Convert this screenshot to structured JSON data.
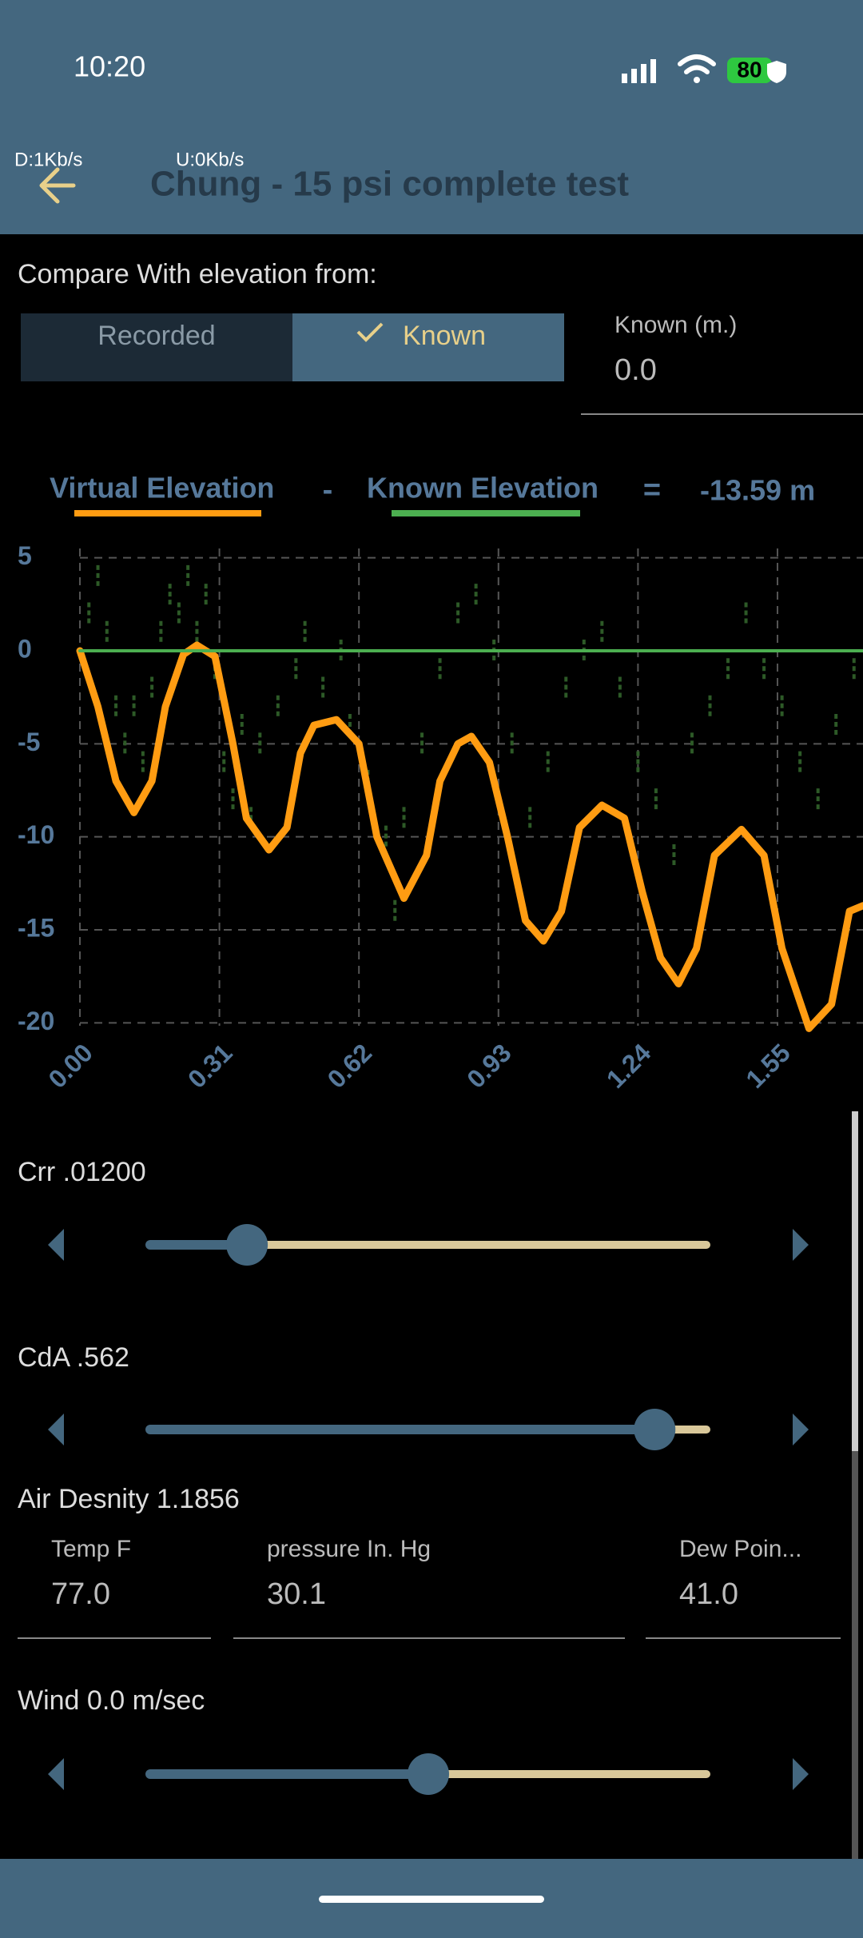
{
  "status_bar": {
    "time": "10:20",
    "battery": "80",
    "download": "D:1Kb/s",
    "upload": "U:0Kb/s"
  },
  "header": {
    "title": "Chung - 15 psi complete test"
  },
  "compare": {
    "label": "Compare With elevation from:",
    "options": [
      "Recorded",
      "Known"
    ],
    "selected": 1,
    "known_label": "Known (m.)",
    "known_value": "0.0"
  },
  "chart_data": {
    "type": "line",
    "xlim": [
      0,
      1.74
    ],
    "ylim": [
      -20.5,
      5.5
    ],
    "xticks": [
      {
        "value": 0,
        "label": "0.00"
      },
      0.31,
      0.62,
      0.93,
      1.24,
      1.55
    ],
    "yticks": [
      5,
      0,
      -5,
      -10,
      -15,
      -20
    ],
    "grid": true,
    "series": [
      {
        "name": "Virtual Elevation",
        "color": "#ff9c12",
        "x": [
          0,
          0.04,
          0.08,
          0.12,
          0.16,
          0.19,
          0.23,
          0.26,
          0.3,
          0.34,
          0.37,
          0.42,
          0.46,
          0.49,
          0.52,
          0.57,
          0.62,
          0.66,
          0.72,
          0.77,
          0.8,
          0.84,
          0.87,
          0.91,
          0.95,
          0.99,
          1.03,
          1.07,
          1.11,
          1.16,
          1.21,
          1.25,
          1.29,
          1.33,
          1.37,
          1.41,
          1.47,
          1.52,
          1.56,
          1.62,
          1.67,
          1.71,
          1.74
        ],
        "values": [
          0,
          -3,
          -7,
          -8.7,
          -7,
          -3,
          -0.2,
          0.3,
          -0.3,
          -5,
          -9,
          -10.7,
          -9.5,
          -5.5,
          -4,
          -3.7,
          -5,
          -10,
          -13.3,
          -11,
          -7,
          -5,
          -4.6,
          -6,
          -10,
          -14.5,
          -15.6,
          -14,
          -9.5,
          -8.3,
          -9,
          -13,
          -16.5,
          -17.9,
          -16,
          -11,
          -9.6,
          -11,
          -16,
          -20.3,
          -19,
          -14,
          -13.7
        ]
      },
      {
        "name": "Known Elevation",
        "color": "#4caf50",
        "x": [
          0,
          1.74
        ],
        "values": [
          0,
          0
        ]
      },
      {
        "color": "#2d5a27",
        "style": "dashes",
        "x": [
          0.02,
          0.04,
          0.06,
          0.08,
          0.1,
          0.12,
          0.14,
          0.16,
          0.18,
          0.2,
          0.22,
          0.24,
          0.26,
          0.28,
          0.3,
          0.32,
          0.34,
          0.36,
          0.38,
          0.4,
          0.44,
          0.48,
          0.5,
          0.54,
          0.58,
          0.6,
          0.64,
          0.68,
          0.7,
          0.72,
          0.76,
          0.8,
          0.84,
          0.88,
          0.92,
          0.96,
          1.0,
          1.04,
          1.08,
          1.12,
          1.16,
          1.2,
          1.24,
          1.28,
          1.32,
          1.36,
          1.4,
          1.44,
          1.48,
          1.52,
          1.56,
          1.6,
          1.64,
          1.68,
          1.72
        ],
        "values": [
          2,
          4,
          1,
          -3,
          -5,
          -3,
          -6,
          -2,
          1,
          3,
          2,
          4,
          1,
          3,
          -1,
          -6,
          -8,
          -4,
          -9,
          -5,
          -3,
          -1,
          1,
          -2,
          0,
          -4,
          -7,
          -10,
          -14,
          -9,
          -5,
          -1,
          2,
          3,
          0,
          -5,
          -9,
          -6,
          -2,
          0,
          1,
          -2,
          -6,
          -8,
          -11,
          -5,
          -3,
          -1,
          2,
          -1,
          -3,
          -6,
          -8,
          -4,
          -1
        ]
      }
    ],
    "operators": [
      "-",
      "="
    ],
    "difference": {
      "value": -13.59,
      "label": "-13.59 m"
    }
  },
  "controls": {
    "crr": {
      "label": "Crr .01200",
      "position": 0.174
    },
    "cda": {
      "label": "CdA .562",
      "position": 0.907
    },
    "air_density": "Air Desnity 1.1856",
    "fields": [
      {
        "label": "Temp F",
        "value": "77.0"
      },
      {
        "label": "pressure In. Hg",
        "value": "30.1"
      },
      {
        "label": "Dew Poin...",
        "value": "41.0"
      }
    ],
    "wind": {
      "label": "Wind 0.0 m/sec",
      "position": 0.5
    }
  }
}
